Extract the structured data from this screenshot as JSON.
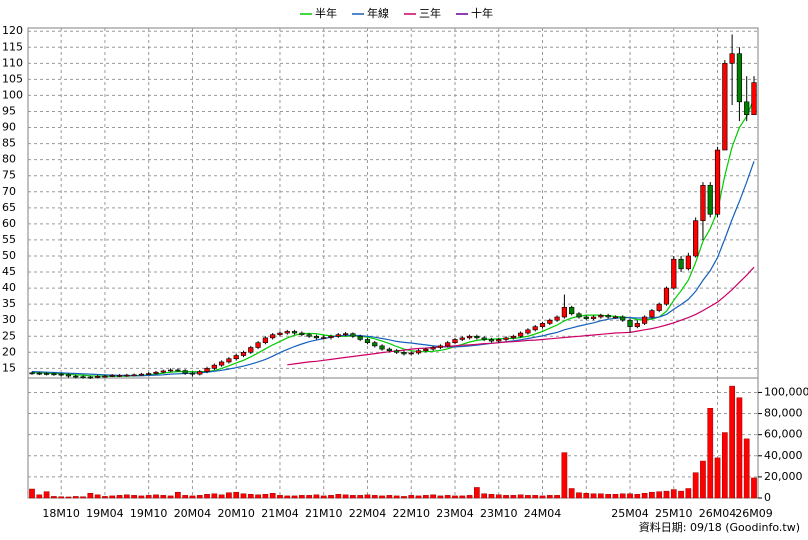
{
  "chart_data": {
    "type": "candlestick",
    "up_color": "#ff0000",
    "down_color": "#008000",
    "grid": true,
    "legend": "top",
    "footer": "資料日期: 09/18  (Goodinfo.tw)",
    "categories": [
      null,
      null,
      null,
      null,
      "18M10",
      null,
      null,
      null,
      null,
      null,
      "19M04",
      null,
      null,
      null,
      null,
      null,
      "19M10",
      null,
      null,
      null,
      null,
      null,
      "20M04",
      null,
      null,
      null,
      null,
      null,
      "20M10",
      null,
      null,
      null,
      null,
      null,
      "21M04",
      null,
      null,
      null,
      null,
      null,
      "21M10",
      null,
      null,
      null,
      null,
      null,
      "22M04",
      null,
      null,
      null,
      null,
      null,
      "22M10",
      null,
      null,
      null,
      null,
      null,
      "23M04",
      null,
      null,
      null,
      null,
      null,
      "23M10",
      null,
      null,
      null,
      null,
      null,
      "24M04",
      null,
      null,
      null,
      null,
      null,
      null,
      null,
      null,
      null,
      null,
      null,
      "25M04",
      null,
      null,
      null,
      null,
      null,
      "25M10",
      null,
      null,
      null,
      null,
      null,
      "26M04",
      null,
      null,
      null,
      null,
      "26M09"
    ],
    "open": [
      13.6,
      13.5,
      13.4,
      13.3,
      13.2,
      13,
      12.6,
      12.4,
      12.3,
      12.2,
      12.5,
      12.6,
      12.8,
      12.8,
      12.9,
      13,
      13.2,
      13.4,
      13.8,
      14.2,
      14.5,
      14.3,
      13.5,
      13.2,
      14,
      15,
      16,
      17,
      18,
      19,
      20,
      21.5,
      23,
      24.5,
      25.5,
      26,
      26.5,
      26,
      25.5,
      25,
      24.5,
      24.6,
      25,
      25.5,
      25.8,
      25,
      24,
      23,
      22,
      21,
      20.5,
      20,
      19.5,
      19.8,
      20.5,
      21,
      21.5,
      22,
      23,
      24,
      24.5,
      25,
      24.5,
      24,
      23.5,
      24,
      24.5,
      25,
      26,
      27,
      28,
      29,
      30,
      31,
      34,
      32,
      31,
      30.5,
      31,
      31.5,
      31,
      31,
      30,
      28,
      29,
      31,
      33,
      35,
      40,
      49,
      46,
      50,
      61,
      72,
      63,
      83,
      110,
      113,
      98,
      94
    ],
    "high": [
      14,
      13.9,
      13.8,
      13.7,
      13.6,
      13.4,
      13,
      12.8,
      12.7,
      12.9,
      13,
      13.2,
      13.2,
      13.3,
      13.4,
      13.6,
      13.8,
      14.2,
      14.6,
      15,
      15,
      14.7,
      14,
      14.5,
      15.5,
      16.5,
      17.5,
      18.5,
      19.5,
      20.5,
      22,
      23.5,
      25,
      26,
      26.5,
      27,
      27,
      26.5,
      26,
      25.5,
      25.2,
      25.5,
      26,
      26.3,
      26.2,
      25.5,
      24.5,
      23.5,
      22.5,
      21.5,
      21,
      20.5,
      20.3,
      21,
      21.5,
      22,
      22.5,
      23.5,
      24.5,
      25,
      25.5,
      25.5,
      25,
      24.5,
      24.5,
      25,
      25.5,
      26.5,
      27.5,
      28.5,
      29.5,
      30.5,
      31.5,
      38,
      34.5,
      32.5,
      31.5,
      31.5,
      32,
      32,
      31.5,
      31.5,
      30.5,
      30,
      31.5,
      33.5,
      35.5,
      40.5,
      50,
      50,
      51,
      62,
      73,
      73,
      84,
      111,
      119,
      115,
      106,
      106
    ],
    "low": [
      13,
      12.9,
      12.8,
      12.7,
      12.5,
      12.1,
      11.9,
      11.8,
      11.7,
      11.9,
      12.1,
      12.3,
      12.3,
      12.4,
      12.5,
      12.7,
      12.9,
      13.1,
      13.5,
      13.9,
      14,
      13,
      12.5,
      12.8,
      13.5,
      14.5,
      15.5,
      16.5,
      17.5,
      18.5,
      19.5,
      21,
      22.5,
      24,
      25,
      25.5,
      25.5,
      25,
      24.5,
      24,
      24,
      24,
      24.5,
      25,
      24.5,
      23.5,
      22.5,
      21.5,
      20.5,
      20,
      19.5,
      19,
      19,
      19.3,
      20,
      20.5,
      21,
      21.5,
      22.5,
      23.5,
      24,
      24,
      23.5,
      23,
      23,
      23.5,
      24,
      24.5,
      25.5,
      26.5,
      27.5,
      28.5,
      29.5,
      30.5,
      31.5,
      30.5,
      30,
      30,
      30.5,
      30.5,
      30.5,
      29.5,
      26,
      27.5,
      28.5,
      30.5,
      32.5,
      34.5,
      39.5,
      45,
      45.5,
      49.5,
      55,
      62,
      62,
      83,
      97,
      92,
      92,
      94
    ],
    "close": [
      13.5,
      13.4,
      13.3,
      13.2,
      13,
      12.6,
      12.4,
      12.3,
      12.2,
      12.5,
      12.6,
      12.8,
      12.8,
      12.9,
      13,
      13.2,
      13.4,
      13.8,
      14.2,
      14.5,
      14.3,
      13.5,
      13.2,
      14,
      15,
      16,
      17,
      18,
      19,
      20,
      21.5,
      23,
      24.5,
      25.5,
      26,
      26.5,
      26,
      25.5,
      25,
      24.5,
      24.6,
      25,
      25.5,
      25.8,
      25,
      24,
      23,
      22,
      21,
      20.5,
      20,
      19.5,
      19.8,
      20.5,
      21,
      21.5,
      22,
      23,
      24,
      24.5,
      25,
      24.5,
      24,
      23.5,
      24,
      24.5,
      25,
      26,
      27,
      28,
      29,
      30,
      31,
      34,
      32,
      31,
      30.5,
      31,
      31.5,
      31,
      31,
      30,
      28,
      29,
      31,
      33,
      35,
      40,
      49,
      46,
      50,
      61,
      72,
      63,
      83,
      110,
      113,
      98,
      94,
      104
    ],
    "ylim": [
      12,
      121
    ],
    "yticks": [
      15,
      20,
      25,
      30,
      35,
      40,
      45,
      50,
      55,
      60,
      65,
      70,
      75,
      80,
      85,
      90,
      95,
      100,
      105,
      110,
      115,
      120
    ],
    "series": [
      {
        "name": "半年",
        "color": "#00cc00",
        "values": [
          13.7,
          13.6,
          13.5,
          13.4,
          13.3,
          13.2,
          13,
          12.9,
          12.7,
          12.6,
          12.6,
          12.5,
          12.6,
          12.6,
          12.7,
          12.8,
          13,
          13.2,
          13.5,
          13.8,
          14,
          14,
          14,
          13.9,
          14.1,
          14.3,
          15,
          15.8,
          16.7,
          17.5,
          18.6,
          19.8,
          21.1,
          22.3,
          23.4,
          24.5,
          25.3,
          25.8,
          25.9,
          25.8,
          25.4,
          25.1,
          25,
          25,
          25.1,
          25,
          24.7,
          24.2,
          23.5,
          22.7,
          21.8,
          21,
          20.5,
          20.2,
          20.2,
          20.3,
          20.6,
          21.1,
          21.8,
          22.5,
          23.2,
          23.7,
          24,
          24.1,
          24.2,
          24.3,
          24.3,
          24.6,
          25,
          25.7,
          26.5,
          27.5,
          28.5,
          29.8,
          30.7,
          31.2,
          31.6,
          31.6,
          31.6,
          31.3,
          31.2,
          31,
          30.8,
          30.2,
          30.1,
          30.3,
          31,
          32.8,
          36.2,
          39.2,
          42.5,
          48,
          54.5,
          58.5,
          64,
          75,
          84,
          90,
          93.5,
          99
        ]
      },
      {
        "name": "年線",
        "color": "#1560bd",
        "values": [
          14,
          13.9,
          13.8,
          13.7,
          13.6,
          13.5,
          13.4,
          13.3,
          13.2,
          13.1,
          13,
          12.9,
          12.8,
          12.8,
          12.7,
          12.7,
          12.8,
          12.9,
          13,
          13.2,
          13.3,
          13.4,
          13.5,
          13.6,
          13.8,
          14.1,
          14.4,
          14.8,
          15.2,
          15.7,
          16.3,
          17,
          17.8,
          18.8,
          19.9,
          20.9,
          21.8,
          22.6,
          23.3,
          23.8,
          24.3,
          24.7,
          25.1,
          25.3,
          25.3,
          25.2,
          25,
          24.7,
          24.3,
          23.9,
          23.4,
          23.1,
          22.9,
          22.6,
          22.3,
          22,
          21.8,
          21.7,
          21.7,
          21.8,
          22,
          22.2,
          22.5,
          22.8,
          23,
          23.3,
          23.6,
          23.9,
          24.3,
          24.7,
          25.1,
          25.7,
          26.2,
          27,
          27.6,
          28.2,
          28.7,
          29.2,
          29.8,
          30.3,
          30.6,
          30.8,
          30.8,
          30.7,
          30.7,
          30.7,
          31,
          31.8,
          33.4,
          34.9,
          36.5,
          39,
          42.4,
          45.4,
          49.5,
          55.3,
          61.4,
          67,
          73,
          79.5
        ]
      },
      {
        "name": "三年",
        "color": "#cc0066",
        "values": [
          null,
          null,
          null,
          null,
          null,
          null,
          null,
          null,
          null,
          null,
          null,
          null,
          null,
          null,
          null,
          null,
          null,
          null,
          null,
          null,
          null,
          null,
          null,
          null,
          null,
          null,
          null,
          null,
          null,
          null,
          null,
          null,
          null,
          null,
          null,
          16.1,
          16.4,
          16.7,
          17,
          17.2,
          17.5,
          17.8,
          18.1,
          18.4,
          18.7,
          19,
          19.3,
          19.6,
          19.9,
          20.2,
          20.4,
          20.7,
          21,
          21.2,
          21.3,
          21.5,
          21.7,
          21.8,
          22,
          22.2,
          22.3,
          22.5,
          22.7,
          22.8,
          23,
          23.2,
          23.3,
          23.5,
          23.7,
          23.8,
          24,
          24.2,
          24.4,
          24.6,
          24.8,
          25,
          25.2,
          25.4,
          25.6,
          25.8,
          26,
          26.1,
          26.2,
          26.6,
          27,
          27.4,
          27.9,
          28.5,
          29.2,
          30,
          30.8,
          31.8,
          33,
          34.3,
          35.6,
          37.5,
          39.5,
          41.8,
          44,
          46.5
        ]
      },
      {
        "name": "十年",
        "color": "#660099",
        "values": [
          null,
          null,
          null,
          null,
          null,
          null,
          null,
          null,
          null,
          null,
          null,
          null,
          null,
          null,
          null,
          null,
          null,
          null,
          null,
          null,
          null,
          null,
          null,
          null,
          null,
          null,
          null,
          null,
          null,
          null,
          null,
          null,
          null,
          null,
          null,
          null,
          null,
          null,
          null,
          null,
          null,
          null,
          null,
          null,
          null,
          null,
          null,
          null,
          null,
          null,
          null,
          null,
          null,
          null,
          null,
          null,
          null,
          null,
          null,
          null,
          null,
          null,
          null,
          null,
          null,
          null,
          null,
          null,
          null,
          null,
          null,
          null,
          null,
          null,
          null,
          null,
          null,
          null,
          null,
          null,
          null,
          null,
          null,
          null,
          null,
          null,
          null,
          null,
          null,
          null,
          null,
          null,
          null,
          null,
          null,
          null,
          null,
          null,
          null,
          null
        ]
      }
    ],
    "volume": {
      "color": "#ff0000",
      "values": [
        8500,
        3000,
        6000,
        1500,
        1200,
        1000,
        1500,
        1200,
        4500,
        3000,
        1500,
        2000,
        2500,
        3000,
        2500,
        2000,
        2500,
        3000,
        2500,
        2000,
        5500,
        2500,
        2000,
        2500,
        3500,
        4000,
        3000,
        5000,
        5500,
        4000,
        3500,
        3000,
        3500,
        4500,
        2500,
        2000,
        2000,
        2500,
        2500,
        3000,
        2000,
        2500,
        3500,
        3000,
        2500,
        2500,
        3000,
        2500,
        2000,
        2500,
        2000,
        1500,
        2500,
        2000,
        2500,
        3000,
        2000,
        2500,
        2000,
        2000,
        2500,
        10000,
        4000,
        3500,
        3000,
        2500,
        2500,
        3000,
        2500,
        2500,
        2000,
        2500,
        2500,
        43000,
        9000,
        5000,
        4500,
        4000,
        4000,
        3500,
        3500,
        4000,
        4000,
        3500,
        4500,
        5500,
        6000,
        6500,
        8000,
        6500,
        9000,
        24000,
        35000,
        85000,
        38000,
        62000,
        106000,
        95000,
        56000,
        19000
      ],
      "ylim": [
        0,
        108000
      ],
      "yticks": [
        0,
        {
          "value": 20000,
          "label": "20,000"
        },
        {
          "value": 40000,
          "label": "40,000"
        },
        {
          "value": 60000,
          "label": "60,000"
        },
        {
          "value": 80000,
          "label": "80,000"
        },
        {
          "value": 100000,
          "label": "100,000"
        }
      ]
    }
  }
}
